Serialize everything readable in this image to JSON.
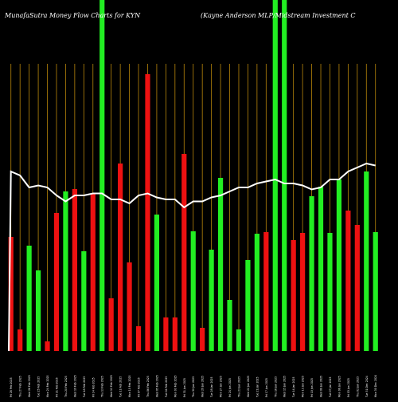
{
  "title_left": "MunafaSutra  Money Flow  Charts for KYN",
  "title_right": "(Kayne   Anderson  MLP/Midstream Investment C",
  "colors": {
    "background": "#000000",
    "grid": "#b8860b",
    "up": "#22ee22",
    "down": "#ee1111",
    "line": "#ffffff"
  },
  "chart_data": {
    "type": "bar",
    "title": "MunafaSutra  Money Flow  Charts for KYN (Kayne   Anderson  MLP/Midstream Investment C",
    "xlabel": "",
    "ylabel": "",
    "grid": true,
    "categories": [
      "Fri 28 Feb 2025",
      "Thu 27 Feb 2025",
      "Wed 26 Feb 2025",
      "Tue 25 Feb 2025",
      "Mon 24 Feb 2025",
      "Fri 21 Feb 2025",
      "Thu 20 Feb 2025",
      "Wed 19 Feb 2025",
      "Tue 18 Feb 2025",
      "Fri 14 Feb 2025",
      "Thu 13 Feb 2025",
      "Wed 12 Feb 2025",
      "Tue 11 Feb 2025",
      "Mon 10 Feb 2025",
      "Fri 07 Feb 2025",
      "Thu 06 Feb 2025",
      "Wed 05 Feb 2025",
      "Tue 04 Feb 2025",
      "Mon 03 Feb 2025",
      "Fri 31 Jan 2025",
      "Thu 30 Jan 2025",
      "Wed 29 Jan 2025",
      "Tue 28 Jan 2025",
      "Mon 27 Jan 2025",
      "Fri 24 Jan 2025",
      "Thu 23 Jan 2025",
      "Wed 22 Jan 2025",
      "Tue 21 Jan 2025",
      "Fri 17 Jan 2025",
      "Thu 16 Jan 2025",
      "Wed 15 Jan 2025",
      "Tue 14 Jan 2025",
      "Mon 13 Jan 2025",
      "Fri 10 Jan 2025",
      "Wed 08 Jan 2025",
      "Tue 07 Jan 2025",
      "Mon 06 Jan 2025",
      "Fri 03 Jan 2025",
      "Thu 02 Jan 2025",
      "Tue 31 Dec 2024",
      "Mon 30 Dec 2024"
    ],
    "values": [
      143,
      27,
      132,
      101,
      12,
      173,
      200,
      203,
      125,
      197,
      440,
      66,
      235,
      111,
      31,
      347,
      171,
      42,
      42,
      247,
      150,
      29,
      127,
      217,
      64,
      27,
      114,
      147,
      149,
      440,
      440,
      139,
      148,
      194,
      206,
      148,
      215,
      176,
      158,
      225,
      149
    ],
    "direction": [
      "down",
      "down",
      "up",
      "up",
      "down",
      "down",
      "up",
      "down",
      "up",
      "down",
      "up",
      "down",
      "down",
      "down",
      "down",
      "down",
      "up",
      "down",
      "down",
      "down",
      "up",
      "down",
      "up",
      "up",
      "up",
      "up",
      "up",
      "up",
      "down",
      "up",
      "up",
      "down",
      "down",
      "up",
      "up",
      "up",
      "up",
      "down",
      "down",
      "up",
      "up"
    ],
    "line": [
      57,
      56,
      53,
      53.5,
      53,
      51,
      49.5,
      51,
      51,
      51.5,
      51.5,
      50,
      50,
      49,
      51,
      51.5,
      50.5,
      50,
      50,
      48,
      49.5,
      49.5,
      50.5,
      51,
      52,
      53,
      53,
      54,
      54.5,
      55,
      54,
      54,
      53.5,
      52.5,
      53,
      55,
      55,
      57,
      58,
      59,
      58.5
    ],
    "ylim": [
      0,
      440
    ]
  }
}
